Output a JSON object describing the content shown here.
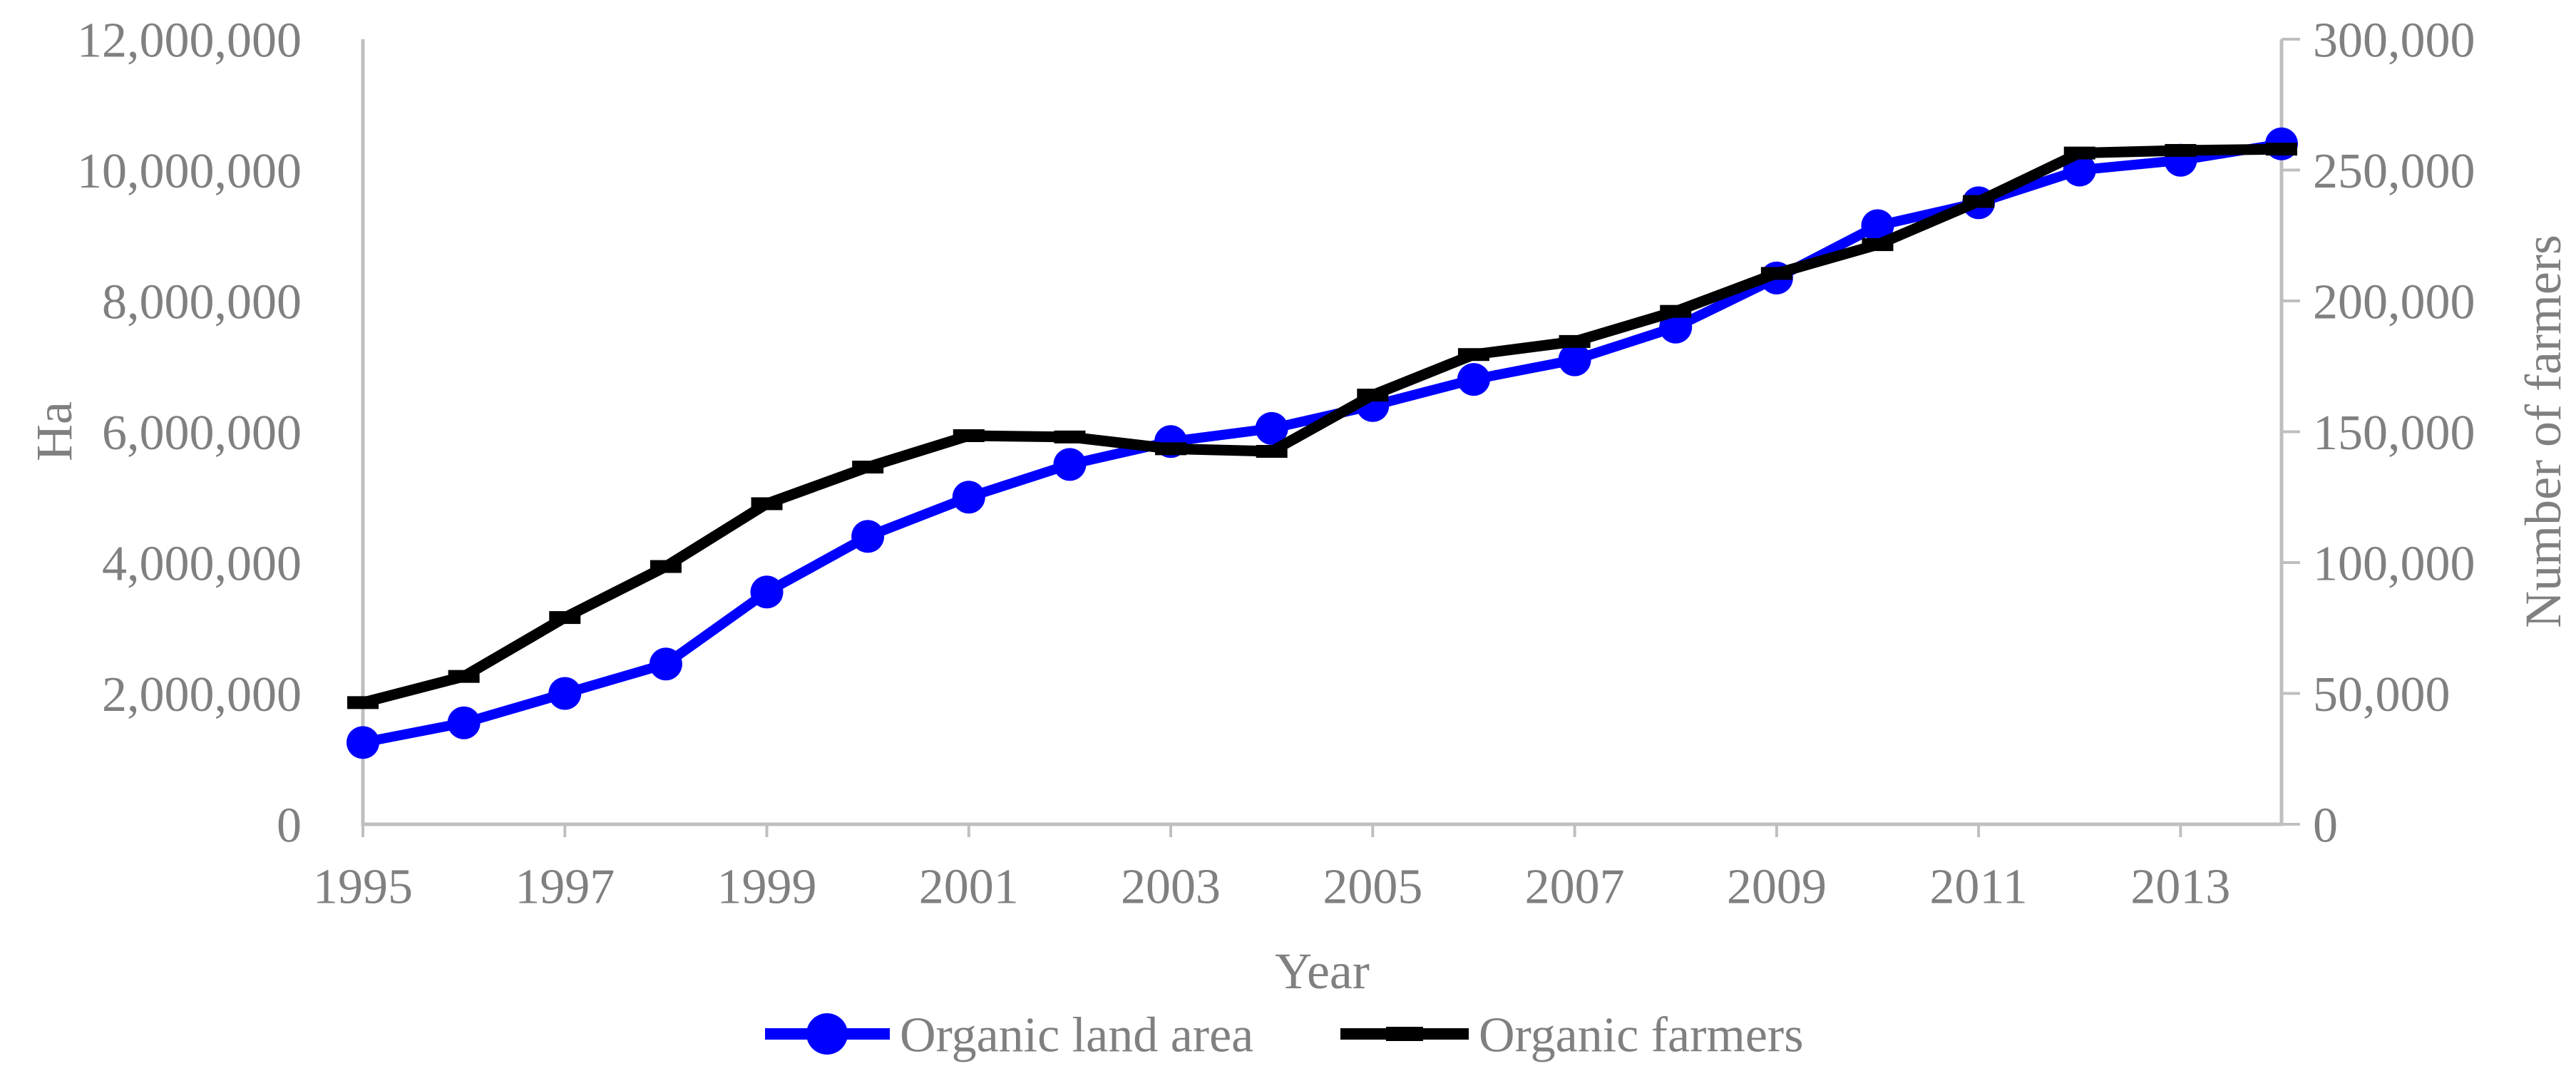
{
  "chart_data": {
    "type": "line",
    "title": "",
    "x": [
      1995,
      1996,
      1997,
      1998,
      1999,
      2000,
      2001,
      2002,
      2003,
      2004,
      2005,
      2006,
      2007,
      2008,
      2009,
      2010,
      2011,
      2012,
      2013,
      2014
    ],
    "series": [
      {
        "name": "Organic land area",
        "axis": "left",
        "color": "#0000ff",
        "marker": "circle",
        "values": [
          1250000,
          1550000,
          2000000,
          2450000,
          3550000,
          4400000,
          5000000,
          5500000,
          5850000,
          6050000,
          6400000,
          6800000,
          7100000,
          7600000,
          8350000,
          9150000,
          9500000,
          10000000,
          10150000,
          10400000
        ]
      },
      {
        "name": "Organic farmers",
        "axis": "right",
        "color": "#000000",
        "marker": "dash",
        "values": [
          46500,
          56500,
          79000,
          98500,
          122500,
          136500,
          148500,
          148000,
          143500,
          142500,
          164000,
          179500,
          184500,
          196000,
          210500,
          221500,
          238000,
          256500,
          257500,
          258000
        ]
      }
    ],
    "x_axis": {
      "label": "Year",
      "tick_labels": [
        "1995",
        "1997",
        "1999",
        "2001",
        "2003",
        "2005",
        "2007",
        "2009",
        "2011",
        "2013"
      ]
    },
    "y_axis_left": {
      "label": "Ha",
      "min": 0,
      "max": 12000000,
      "step": 2000000,
      "tick_labels": [
        "0",
        "2,000,000",
        "4,000,000",
        "6,000,000",
        "8,000,000",
        "10,000,000",
        "12,000,000"
      ]
    },
    "y_axis_right": {
      "label": "Number of farmers",
      "min": 0,
      "max": 300000,
      "step": 50000,
      "tick_labels": [
        "0",
        "50,000",
        "100,000",
        "150,000",
        "200,000",
        "250,000",
        "300,000"
      ]
    },
    "legend": {
      "position": "bottom",
      "items": [
        "Organic land area",
        "Organic farmers"
      ]
    },
    "grid": false
  },
  "styles": {
    "text_color": "#808080",
    "axis_color": "#bfbfbf",
    "background": "#ffffff",
    "series_land_color": "#0000ff",
    "series_farmers_color": "#000000"
  }
}
